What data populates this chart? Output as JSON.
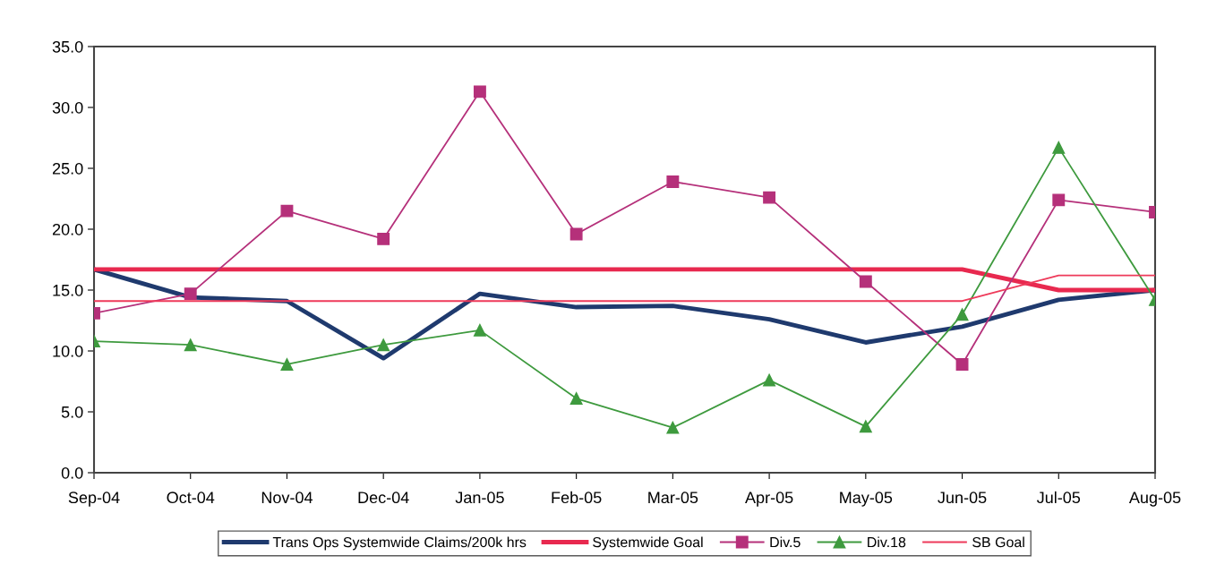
{
  "chart_data": {
    "type": "line",
    "categories": [
      "Sep-04",
      "Oct-04",
      "Nov-04",
      "Dec-04",
      "Jan-05",
      "Feb-05",
      "Mar-05",
      "Apr-05",
      "May-05",
      "Jun-05",
      "Jul-05",
      "Aug-05"
    ],
    "series": [
      {
        "name": "Trans Ops Systemwide Claims/200k hrs",
        "color": "#1f3a6e",
        "values": [
          16.7,
          14.4,
          14.1,
          9.4,
          14.7,
          13.6,
          13.7,
          12.6,
          10.7,
          12.0,
          14.2,
          15.0
        ],
        "marker": "none"
      },
      {
        "name": "Systemwide Goal",
        "color": "#e8294f",
        "values": [
          16.7,
          16.7,
          16.7,
          16.7,
          16.7,
          16.7,
          16.7,
          16.7,
          16.7,
          16.7,
          15.0,
          15.0
        ],
        "marker": "none"
      },
      {
        "name": "Div.5",
        "color": "#b5307a",
        "values": [
          13.1,
          14.7,
          21.5,
          19.2,
          31.3,
          19.6,
          23.9,
          22.6,
          15.7,
          8.9,
          22.4,
          21.4
        ],
        "marker": "square"
      },
      {
        "name": "Div.18",
        "color": "#3e9a3e",
        "values": [
          10.8,
          10.5,
          8.9,
          10.5,
          11.7,
          6.1,
          3.7,
          7.6,
          3.8,
          13.0,
          26.7,
          14.2
        ],
        "marker": "triangle"
      },
      {
        "name": "SB Goal",
        "color": "#ee3a5a",
        "values": [
          14.1,
          14.1,
          14.1,
          14.1,
          14.1,
          14.1,
          14.1,
          14.1,
          14.1,
          14.1,
          16.2,
          16.2
        ],
        "marker": "none"
      }
    ],
    "ylim": [
      0,
      35
    ],
    "yticks": [
      {
        "value": 0,
        "label": "0.0"
      },
      {
        "value": 5,
        "label": "5.0"
      },
      {
        "value": 10,
        "label": "10.0"
      },
      {
        "value": 15,
        "label": "15.0"
      },
      {
        "value": 20,
        "label": "20.0"
      },
      {
        "value": 25,
        "label": "25.0"
      },
      {
        "value": 30,
        "label": "30.0"
      },
      {
        "value": 35,
        "label": "35.0"
      }
    ],
    "grid": false,
    "legend": "bottom",
    "line_style": "solid"
  }
}
